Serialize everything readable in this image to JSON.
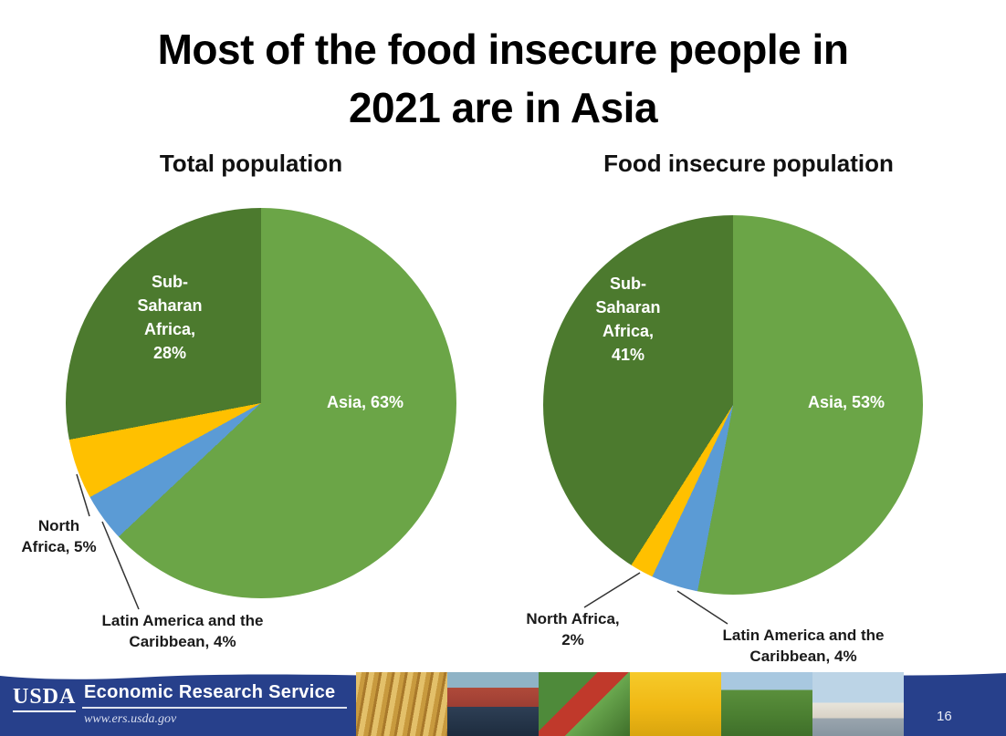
{
  "slide": {
    "title": [
      "Most of the food insecure people in",
      "2021 are in Asia"
    ]
  },
  "chart_data": [
    {
      "type": "pie",
      "title": "Total population",
      "start_angle_deg": 0,
      "direction": "clockwise",
      "legend": "none",
      "slices": [
        {
          "label": "Asia",
          "value": 63,
          "color": "#6BA547"
        },
        {
          "label": "Latin America and the Caribbean",
          "value": 4,
          "color": "#5B9BD5"
        },
        {
          "label": "North Africa",
          "value": 5,
          "color": "#FFC000"
        },
        {
          "label": "Sub-Saharan Africa",
          "value": 28,
          "color": "#4C7A2E"
        }
      ],
      "callouts": {
        "asia": "Asia, 63%",
        "sub_saharan": [
          "Sub-",
          "Saharan",
          "Africa,",
          "28%"
        ],
        "north_africa": [
          "North",
          "Africa, 5%"
        ],
        "latin_america": [
          "Latin America and the",
          "Caribbean, 4%"
        ]
      }
    },
    {
      "type": "pie",
      "title": "Food insecure population",
      "start_angle_deg": 0,
      "direction": "clockwise",
      "legend": "none",
      "slices": [
        {
          "label": "Asia",
          "value": 53,
          "color": "#6BA547"
        },
        {
          "label": "Latin America and the Caribbean",
          "value": 4,
          "color": "#5B9BD5"
        },
        {
          "label": "North Africa",
          "value": 2,
          "color": "#FFC000"
        },
        {
          "label": "Sub-Saharan Africa",
          "value": 41,
          "color": "#4C7A2E"
        }
      ],
      "callouts": {
        "asia": "Asia, 53%",
        "sub_saharan": [
          "Sub-",
          "Saharan",
          "Africa,",
          "41%"
        ],
        "north_africa": [
          "North Africa,",
          "2%"
        ],
        "latin_america": [
          "Latin America and the",
          "Caribbean, 4%"
        ]
      }
    }
  ],
  "footer": {
    "logo_text": "USDA",
    "agency": "Economic Research Service",
    "website": "www.ers.usda.gov",
    "page_number": "16",
    "photos": [
      "wheat",
      "cargo-ship",
      "produce-market",
      "shopping-cart",
      "farmland",
      "town"
    ]
  },
  "colors": {
    "asia_green": "#6BA547",
    "sub_saharan_dark_green": "#4C7A2E",
    "north_africa_gold": "#FFC000",
    "latin_america_blue": "#5B9BD5",
    "footer_navy": "#27408B"
  }
}
